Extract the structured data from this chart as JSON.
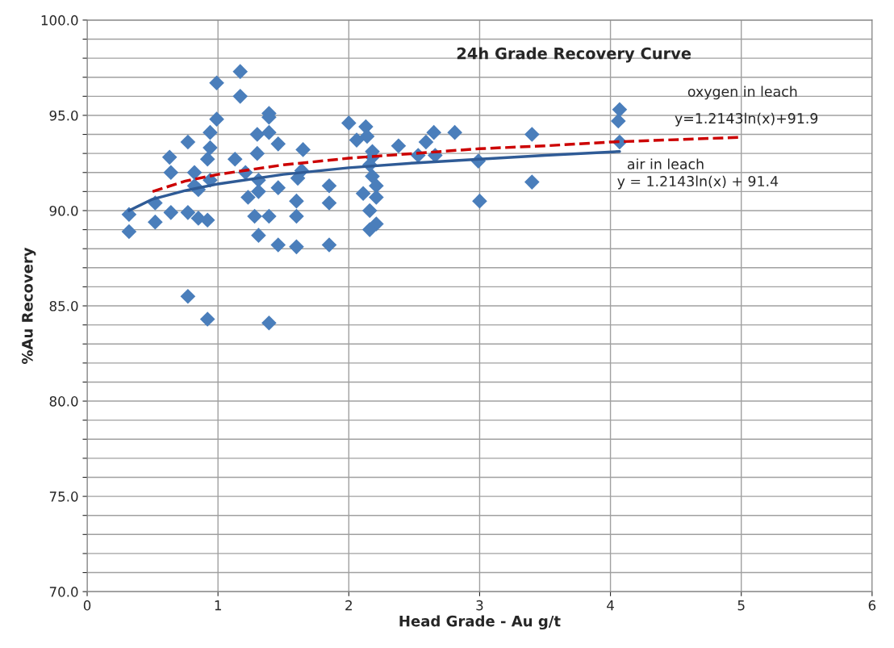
{
  "chart_data": {
    "type": "scatter",
    "title": "24h Grade Recovery Curve",
    "xlabel": "Head Grade - Au g/t",
    "ylabel": "%Au Recovery",
    "xlim": [
      0,
      6
    ],
    "xticks": [
      0,
      1,
      2,
      3,
      4,
      5,
      6
    ],
    "ylim": [
      70,
      100
    ],
    "yticks": [
      {
        "value": 70,
        "label": "70.0"
      },
      {
        "value": 71,
        "label": null
      },
      {
        "value": 72,
        "label": null
      },
      {
        "value": 73,
        "label": null
      },
      {
        "value": 74,
        "label": null
      },
      {
        "value": 75,
        "label": "75.0"
      },
      {
        "value": 76,
        "label": null
      },
      {
        "value": 77,
        "label": null
      },
      {
        "value": 78,
        "label": null
      },
      {
        "value": 79,
        "label": null
      },
      {
        "value": 80,
        "label": "80.0"
      },
      {
        "value": 81,
        "label": null
      },
      {
        "value": 82,
        "label": null
      },
      {
        "value": 83,
        "label": null
      },
      {
        "value": 84,
        "label": null
      },
      {
        "value": 85,
        "label": "85.0"
      },
      {
        "value": 86,
        "label": null
      },
      {
        "value": 87,
        "label": null
      },
      {
        "value": 88,
        "label": null
      },
      {
        "value": 89,
        "label": null
      },
      {
        "value": 90,
        "label": "90.0"
      },
      {
        "value": 91,
        "label": null
      },
      {
        "value": 92,
        "label": null
      },
      {
        "value": 93,
        "label": null
      },
      {
        "value": 94,
        "label": null
      },
      {
        "value": 95,
        "label": "95.0"
      },
      {
        "value": 96,
        "label": null
      },
      {
        "value": 97,
        "label": null
      },
      {
        "value": 98,
        "label": null
      },
      {
        "value": 99,
        "label": null
      },
      {
        "value": 100,
        "label": "100.0"
      }
    ],
    "grid": true,
    "legend": false,
    "series": [
      {
        "color": "#4a7ebb",
        "marker": "diamond",
        "x": [
          0.32,
          0.32,
          0.52,
          0.52,
          0.63,
          0.64,
          0.64,
          0.77,
          0.77,
          0.77,
          0.82,
          0.82,
          0.85,
          0.85,
          0.92,
          0.94,
          0.94,
          0.94,
          0.92,
          0.92,
          0.99,
          0.99,
          1.13,
          1.17,
          1.17,
          1.21,
          1.23,
          1.28,
          1.3,
          1.3,
          1.31,
          1.31,
          1.31,
          1.39,
          1.39,
          1.39,
          1.39,
          1.39,
          1.46,
          1.46,
          1.46,
          1.65,
          1.64,
          1.61,
          1.6,
          1.6,
          1.6,
          1.85,
          1.85,
          1.85,
          2.0,
          2.13,
          2.06,
          2.14,
          2.18,
          2.18,
          2.16,
          2.18,
          2.21,
          2.11,
          2.21,
          2.16,
          2.21,
          2.16,
          2.38,
          2.53,
          2.59,
          2.65,
          2.66,
          2.81,
          2.99,
          3.0,
          3.4,
          3.4,
          4.07,
          4.06,
          4.07
        ],
        "values": [
          89.8,
          88.9,
          90.4,
          89.4,
          92.8,
          92.0,
          89.9,
          93.6,
          89.9,
          85.5,
          92.0,
          91.3,
          91.1,
          89.6,
          92.7,
          93.3,
          94.1,
          91.6,
          89.5,
          84.3,
          96.7,
          94.8,
          92.7,
          97.3,
          96.0,
          92.0,
          90.7,
          89.7,
          94.0,
          93.0,
          91.6,
          91.0,
          88.7,
          95.1,
          94.9,
          94.1,
          89.7,
          84.1,
          93.5,
          91.2,
          88.2,
          93.2,
          92.1,
          91.7,
          90.5,
          89.7,
          88.1,
          91.3,
          90.4,
          88.2,
          94.6,
          94.4,
          93.7,
          93.9,
          93.1,
          92.8,
          92.4,
          91.8,
          91.3,
          90.9,
          90.7,
          90.0,
          89.3,
          89.0,
          93.4,
          92.9,
          93.6,
          94.1,
          92.9,
          94.1,
          92.6,
          90.5,
          94.0,
          91.5,
          95.3,
          94.7,
          93.6
        ]
      },
      {
        "type": "line",
        "color": "#cc0000",
        "line_style": "dashed",
        "marker": "none",
        "x": [
          0.5,
          0.75,
          1,
          1.5,
          2,
          2.5,
          3,
          3.5,
          4,
          5
        ],
        "values": [
          91.0,
          91.55,
          91.9,
          92.4,
          92.75,
          93.0,
          93.25,
          93.4,
          93.6,
          93.85
        ]
      },
      {
        "type": "line",
        "color": "#2f5b96",
        "line_style": "solid",
        "marker": "none",
        "x": [
          0.32,
          0.5,
          0.75,
          1,
          1.5,
          2,
          2.5,
          3,
          3.5,
          4.07
        ],
        "values": [
          90.0,
          90.6,
          91.05,
          91.4,
          91.9,
          92.25,
          92.5,
          92.7,
          92.9,
          93.1
        ]
      }
    ],
    "annotations": [
      "oxygen in leach",
      "y=1.2143ln(x)+91.9",
      "air in leach",
      "y = 1.2143ln(x) + 91.4"
    ]
  }
}
